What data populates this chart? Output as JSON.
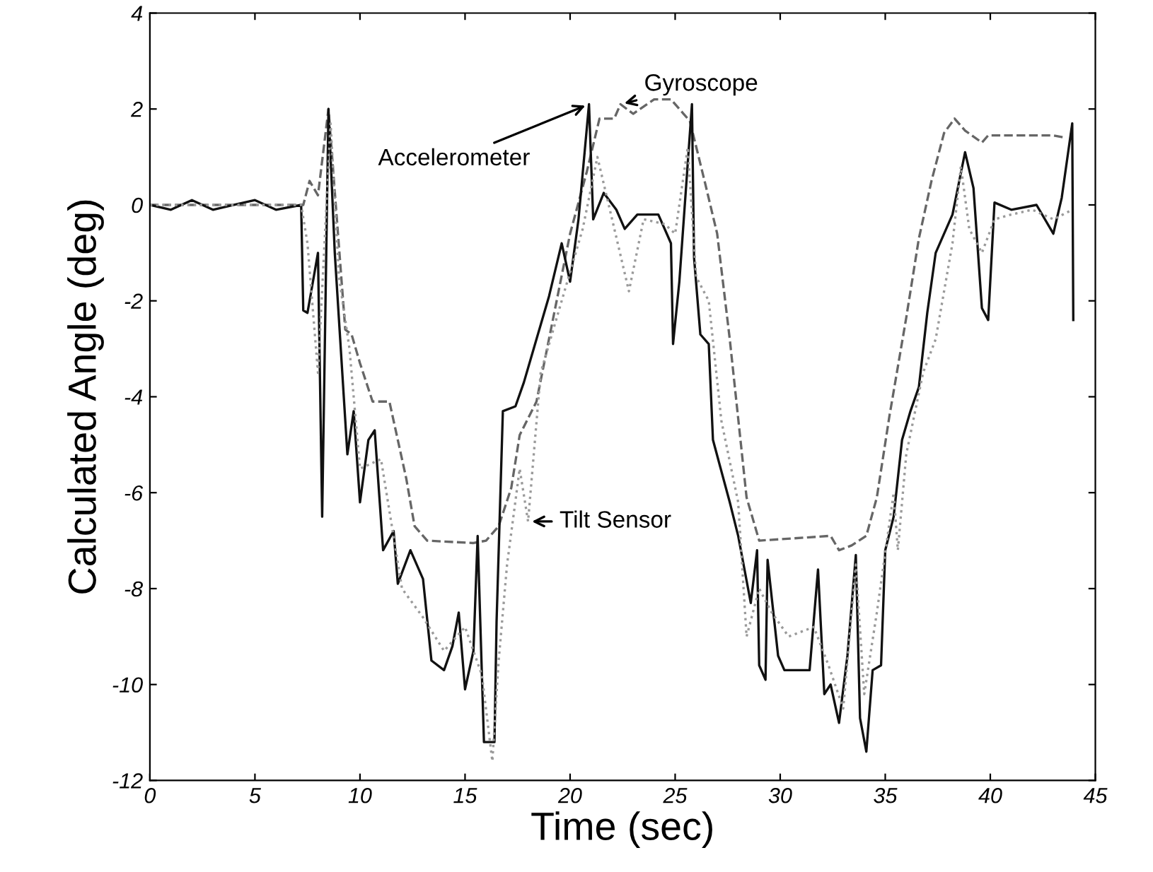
{
  "chart_data": {
    "type": "line",
    "xlabel": "Time (sec)",
    "ylabel": "Calculated Angle (deg)",
    "xlim": [
      0,
      45
    ],
    "xticks": [
      0,
      5,
      10,
      15,
      20,
      25,
      30,
      35,
      40,
      45
    ],
    "ylim": [
      -12,
      4
    ],
    "yticks": [
      -12,
      -10,
      -8,
      -6,
      -4,
      -2,
      0,
      2,
      4
    ],
    "grid": false,
    "legend": false,
    "series": [
      {
        "name": "Gyroscope",
        "color": "#666666",
        "line_style": "dashed",
        "x": [
          0,
          7.3,
          7.6,
          8.0,
          8.5,
          9.3,
          9.6,
          10.0,
          10.6,
          11.4,
          12.2,
          12.6,
          13.2,
          15.4,
          16.0,
          16.6,
          17.2,
          17.6,
          18.4,
          19.2,
          20.0,
          20.8,
          21.4,
          22.1,
          22.4,
          23.0,
          24.0,
          24.8,
          25.4,
          25.7,
          26.4,
          27.0,
          27.6,
          28.4,
          29.0,
          32.4,
          32.8,
          33.4,
          34.1,
          34.6,
          35.2,
          36.0,
          36.6,
          37.2,
          37.8,
          38.3,
          38.8,
          39.6,
          39.9,
          43.0,
          43.6
        ],
        "values": [
          0,
          0,
          0.5,
          0.2,
          2.0,
          -2.6,
          -2.7,
          -3.3,
          -4.1,
          -4.1,
          -5.7,
          -6.7,
          -7.0,
          -7.05,
          -7.0,
          -6.7,
          -5.9,
          -4.8,
          -4.1,
          -2.35,
          -0.6,
          0.7,
          1.8,
          1.8,
          2.1,
          1.9,
          2.2,
          2.2,
          1.9,
          1.75,
          0.5,
          -0.6,
          -2.8,
          -6.1,
          -7.0,
          -6.9,
          -7.2,
          -7.1,
          -6.9,
          -6.1,
          -4.4,
          -2.35,
          -0.7,
          0.5,
          1.5,
          1.8,
          1.55,
          1.3,
          1.45,
          1.45,
          1.4
        ]
      },
      {
        "name": "Accelerometer",
        "color": "#111111",
        "line_style": "solid",
        "x": [
          0,
          1,
          2,
          3,
          4,
          5,
          6,
          7.2,
          7.3,
          7.5,
          8.0,
          8.2,
          8.5,
          8.8,
          9.4,
          9.7,
          10.0,
          10.4,
          10.7,
          11.1,
          11.6,
          11.8,
          12.4,
          13.0,
          13.4,
          14.0,
          14.4,
          14.7,
          15.0,
          15.4,
          15.6,
          15.9,
          16.4,
          16.5,
          16.8,
          17.4,
          17.8,
          18.4,
          19.0,
          19.6,
          20.0,
          20.4,
          20.9,
          21.1,
          21.6,
          22.2,
          22.6,
          23.2,
          24.2,
          24.8,
          24.9,
          25.2,
          25.8,
          25.9,
          26.2,
          26.6,
          26.8,
          27.6,
          28.0,
          28.6,
          28.9,
          29.0,
          29.3,
          29.4,
          29.9,
          30.2,
          31.4,
          31.8,
          32.1,
          32.4,
          32.8,
          33.2,
          33.6,
          33.8,
          34.1,
          34.4,
          34.8,
          35.0,
          35.4,
          35.8,
          36.2,
          36.6,
          37.0,
          37.4,
          38.2,
          38.8,
          39.2,
          39.6,
          39.9,
          40.2,
          41.0,
          42.2,
          43.0,
          43.4,
          43.9,
          43.95
        ],
        "values": [
          0,
          -0.1,
          0.1,
          -0.1,
          0,
          0.1,
          -0.1,
          0,
          -2.2,
          -2.25,
          -1.0,
          -6.5,
          2.0,
          -1.0,
          -5.2,
          -4.3,
          -6.2,
          -4.9,
          -4.7,
          -7.2,
          -6.8,
          -7.9,
          -7.2,
          -7.8,
          -9.5,
          -9.7,
          -9.2,
          -8.5,
          -10.1,
          -9.3,
          -6.9,
          -11.2,
          -11.2,
          -8.7,
          -4.3,
          -4.2,
          -3.7,
          -2.8,
          -1.9,
          -0.8,
          -1.6,
          -0.3,
          2.1,
          -0.3,
          0.25,
          -0.1,
          -0.5,
          -0.2,
          -0.2,
          -0.8,
          -2.9,
          -1.6,
          2.1,
          -1.1,
          -2.7,
          -2.9,
          -4.9,
          -6.2,
          -6.9,
          -8.3,
          -7.2,
          -9.6,
          -9.9,
          -7.4,
          -9.4,
          -9.7,
          -9.7,
          -7.6,
          -10.2,
          -10.0,
          -10.8,
          -9.4,
          -7.3,
          -10.7,
          -11.4,
          -9.7,
          -9.6,
          -7.2,
          -6.5,
          -4.9,
          -4.3,
          -3.8,
          -2.25,
          -1.0,
          -0.2,
          1.1,
          0.35,
          -2.15,
          -2.4,
          0.05,
          -0.1,
          0,
          -0.6,
          0.15,
          1.7,
          -2.4
        ]
      },
      {
        "name": "Tilt Sensor",
        "color": "#9a9a9a",
        "line_style": "dotted",
        "x": [
          0,
          3,
          7.2,
          7.5,
          8.0,
          8.6,
          9.0,
          9.5,
          10.0,
          11.0,
          12.0,
          13.0,
          14.0,
          15.0,
          15.8,
          16.3,
          16.6,
          17.0,
          17.6,
          18.0,
          18.6,
          19.6,
          20.6,
          21.3,
          22.0,
          22.8,
          23.5,
          24.5,
          25.0,
          25.6,
          26.0,
          26.6,
          27.2,
          28.0,
          28.4,
          29.0,
          29.6,
          30.4,
          31.6,
          32.3,
          33.0,
          33.6,
          34.0,
          34.6,
          35.4,
          35.6,
          36.0,
          36.8,
          37.4,
          38.2,
          38.6,
          39.0,
          39.6,
          40.2,
          41.0,
          42.0,
          43.0,
          43.9
        ],
        "values": [
          0,
          0,
          0,
          -0.8,
          -3.5,
          1.7,
          -1.5,
          -3.0,
          -5.5,
          -5.3,
          -8.0,
          -8.6,
          -9.3,
          -8.8,
          -9.8,
          -11.6,
          -9.5,
          -7.5,
          -5.5,
          -6.6,
          -3.5,
          -2.0,
          -0.5,
          1.0,
          -0.3,
          -1.8,
          -0.3,
          -0.4,
          -0.6,
          1.2,
          -1.5,
          -2.0,
          -4.5,
          -6.2,
          -9.0,
          -8.0,
          -8.5,
          -9.0,
          -8.8,
          -9.6,
          -10.5,
          -7.5,
          -10.2,
          -8.5,
          -6.0,
          -7.2,
          -5.2,
          -3.5,
          -2.8,
          -0.8,
          0.8,
          -0.5,
          -1.0,
          -0.3,
          -0.2,
          -0.1,
          -0.3,
          -0.1
        ]
      }
    ]
  }
}
